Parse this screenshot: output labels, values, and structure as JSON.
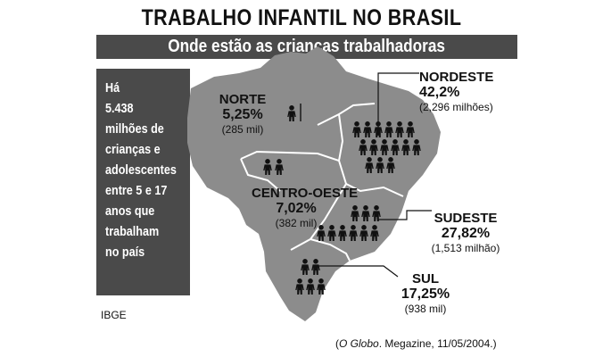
{
  "title": "TRABALHO INFANTIL NO BRASIL",
  "subtitle": "Onde estão as crianças trabalhadoras",
  "sidebar": {
    "lines": [
      "Há",
      "5.438",
      "milhões de",
      "crianças e",
      "adolescentes",
      "entre 5 e 17",
      "anos que",
      "trabalham",
      "no país"
    ]
  },
  "regions": {
    "norte": {
      "name": "NORTE",
      "percent": "5,25%",
      "amount": "(285 mil)"
    },
    "nordeste": {
      "name": "NORDESTE",
      "percent": "42,2%",
      "amount": "(2,296 milhões)"
    },
    "centro_oeste": {
      "name": "CENTRO-OESTE",
      "percent": "7,02%",
      "amount": "(382 mil)"
    },
    "sudeste": {
      "name": "SUDESTE",
      "percent": "27,82%",
      "amount": "(1,513 milhão)"
    },
    "sul": {
      "name": "SUL",
      "percent": "17,25%",
      "amount": "(938 mil)"
    }
  },
  "source": "IBGE",
  "credit": {
    "open": "(",
    "publication": "O Globo",
    "rest": ". Megazine, 11/05/2004.)"
  },
  "colors": {
    "map_fill": "#8c8c8c",
    "border": "#ffffff",
    "box": "#4a4a4a",
    "figure": "#111111"
  },
  "icons": {
    "child": "child-figure-icon"
  }
}
